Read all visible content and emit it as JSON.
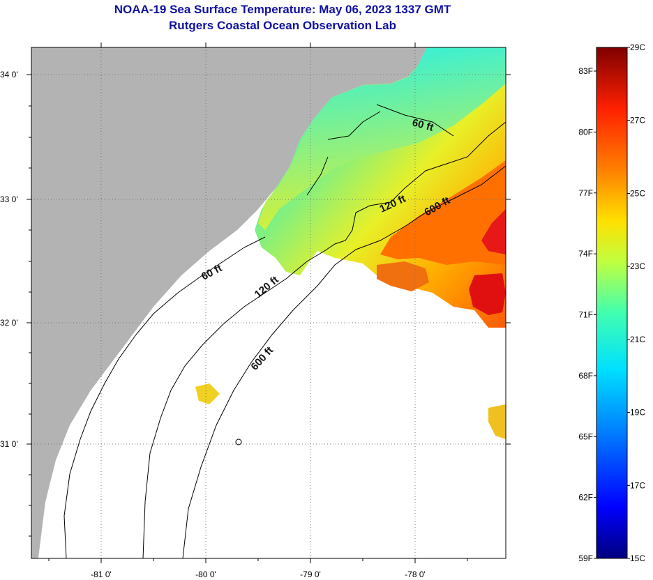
{
  "title": {
    "line1": "NOAA-19 Sea Surface Temperature:  May 06, 2023 1337 GMT",
    "line2": "Rutgers Coastal Ocean Observation Lab"
  },
  "map": {
    "lat_labels": [
      "34 0'",
      "33 0'",
      "32 0'",
      "31 0'"
    ],
    "lon_labels": [
      "-81 0'",
      "-80 0'",
      "-79 0'",
      "-78 0'"
    ],
    "contour_labels": [
      "60 ft",
      "120 ft",
      "600 ft",
      "60 ft",
      "120 ft",
      "600 ft"
    ],
    "colors": {
      "land": "#b3b3b3",
      "no_data": "#ffffff",
      "cool_water": "#28e8c8",
      "warm_water": "#ff8a00",
      "hot_water": "#e01010"
    }
  },
  "colorbar": {
    "fahrenheit": [
      "83F",
      "80F",
      "77F",
      "74F",
      "71F",
      "68F",
      "65F",
      "62F",
      "59F"
    ],
    "celsius": [
      "29C",
      "27C",
      "25C",
      "23C",
      "21C",
      "19C",
      "17C",
      "15C"
    ],
    "stops": [
      "#00007f",
      "#0000ff",
      "#0080ff",
      "#00e0ff",
      "#40ffb0",
      "#c0ff40",
      "#ffe000",
      "#ff8000",
      "#ff2000",
      "#7f0000"
    ]
  }
}
